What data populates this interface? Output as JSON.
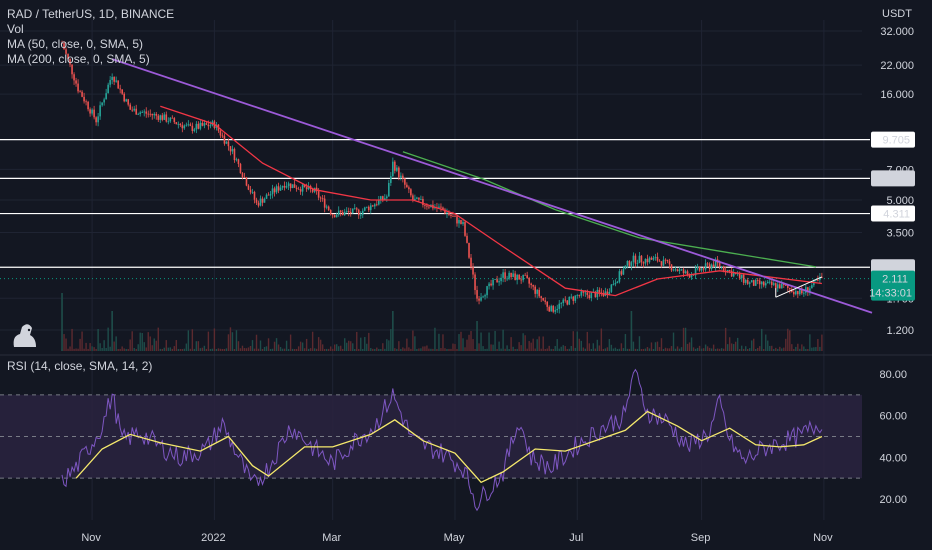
{
  "header": {
    "symbol_line": "RAD / TetherUS, 1D, BINANCE",
    "vol_label": "Vol",
    "ma50_label": "MA (50, close, 0, SMA, 5)",
    "ma200_label": "MA (200, close, 0, SMA, 5)",
    "currency": "USDT",
    "rsi_label": "RSI (14, close, SMA, 14, 2)"
  },
  "colors": {
    "background": "#131722",
    "candle_up": "#26a69a",
    "candle_down": "#ef5350",
    "ma50": "#f23645",
    "ma200": "#4caf50",
    "trendline": "#9c5ad8",
    "horizontal_levels": "#ffffff",
    "rsi_line": "#7e57c2",
    "rsi_ma": "#f5e96c",
    "rsi_band": "#2a2340",
    "current_price_tag": "#089981"
  },
  "chart_data": [
    {
      "type": "candlestick",
      "title": "RAD / TetherUS, 1D, BINANCE",
      "scale": "log",
      "yticks": [
        "32.000",
        "22.000",
        "16.000",
        "7.000",
        "5.000",
        "3.500",
        "1.700",
        "1.200"
      ],
      "ylim": [
        1.0,
        40.0
      ],
      "xticks": [
        "Nov",
        "2022",
        "Mar",
        "May",
        "Jul",
        "Sep",
        "Nov"
      ],
      "horizontal_levels": [
        {
          "value": 9.705,
          "label": "9.705"
        },
        {
          "value": 6.342,
          "label": "6.342"
        },
        {
          "value": 4.311,
          "label": "4.311"
        },
        {
          "value": 2.391,
          "label": "2.391"
        }
      ],
      "current_price": {
        "value": 2.111,
        "label": "2.111",
        "countdown": "14:33:01"
      },
      "trendline": {
        "from": {
          "date": "2021-11-11",
          "price": 23.5
        },
        "to": {
          "date": "2022-11-25",
          "price": 1.45
        }
      },
      "price_path": [
        {
          "date": "2021-10-17",
          "close": 28
        },
        {
          "date": "2021-10-25",
          "close": 17
        },
        {
          "date": "2021-11-03",
          "close": 12
        },
        {
          "date": "2021-11-11",
          "close": 20
        },
        {
          "date": "2021-11-20",
          "close": 13.5
        },
        {
          "date": "2021-12-05",
          "close": 12.5
        },
        {
          "date": "2021-12-20",
          "close": 11
        },
        {
          "date": "2022-01-01",
          "close": 11.5
        },
        {
          "date": "2022-01-10",
          "close": 8.5
        },
        {
          "date": "2022-01-22",
          "close": 4.8
        },
        {
          "date": "2022-02-05",
          "close": 6
        },
        {
          "date": "2022-02-20",
          "close": 5.5
        },
        {
          "date": "2022-03-01",
          "close": 4.3
        },
        {
          "date": "2022-03-15",
          "close": 4.4
        },
        {
          "date": "2022-03-28",
          "close": 5.2
        },
        {
          "date": "2022-03-31",
          "close": 7.5
        },
        {
          "date": "2022-04-10",
          "close": 5
        },
        {
          "date": "2022-04-25",
          "close": 4.5
        },
        {
          "date": "2022-05-05",
          "close": 3.8
        },
        {
          "date": "2022-05-12",
          "close": 1.7
        },
        {
          "date": "2022-05-25",
          "close": 2.2
        },
        {
          "date": "2022-06-05",
          "close": 2.1
        },
        {
          "date": "2022-06-18",
          "close": 1.5
        },
        {
          "date": "2022-07-01",
          "close": 1.75
        },
        {
          "date": "2022-07-15",
          "close": 1.8
        },
        {
          "date": "2022-07-28",
          "close": 2.6
        },
        {
          "date": "2022-08-10",
          "close": 2.6
        },
        {
          "date": "2022-08-25",
          "close": 2.2
        },
        {
          "date": "2022-09-08",
          "close": 2.5
        },
        {
          "date": "2022-09-25",
          "close": 2.0
        },
        {
          "date": "2022-10-10",
          "close": 1.95
        },
        {
          "date": "2022-10-21",
          "close": 1.8
        },
        {
          "date": "2022-10-31",
          "close": 2.111
        }
      ],
      "ma50": [
        {
          "date": "2021-12-05",
          "value": 14
        },
        {
          "date": "2022-01-01",
          "value": 11.5
        },
        {
          "date": "2022-01-25",
          "value": 7.5
        },
        {
          "date": "2022-02-20",
          "value": 5.6
        },
        {
          "date": "2022-03-20",
          "value": 5.0
        },
        {
          "date": "2022-04-10",
          "value": 5.0
        },
        {
          "date": "2022-05-01",
          "value": 4.3
        },
        {
          "date": "2022-05-25",
          "value": 3.0
        },
        {
          "date": "2022-06-25",
          "value": 1.9
        },
        {
          "date": "2022-07-20",
          "value": 1.75
        },
        {
          "date": "2022-08-10",
          "value": 2.1
        },
        {
          "date": "2022-09-10",
          "value": 2.3
        },
        {
          "date": "2022-10-31",
          "value": 2.0
        }
      ],
      "ma200": [
        {
          "date": "2022-04-05",
          "value": 8.5
        },
        {
          "date": "2022-05-15",
          "value": 6.3
        },
        {
          "date": "2022-06-20",
          "value": 4.5
        },
        {
          "date": "2022-08-01",
          "value": 3.3
        },
        {
          "date": "2022-09-15",
          "value": 2.8
        },
        {
          "date": "2022-10-28",
          "value": 2.4
        }
      ]
    },
    {
      "type": "line",
      "title": "RSI (14, close, SMA, 14, 2)",
      "yticks": [
        "80.00",
        "60.00",
        "40.00",
        "20.00"
      ],
      "ylim": [
        15,
        85
      ],
      "band": [
        30,
        70
      ],
      "midline": 50,
      "series": [
        {
          "name": "RSI",
          "points": [
            {
              "date": "2021-10-17",
              "value": 28
            },
            {
              "date": "2021-10-24",
              "value": 35
            },
            {
              "date": "2021-11-01",
              "value": 47
            },
            {
              "date": "2021-11-06",
              "value": 55
            },
            {
              "date": "2021-11-11",
              "value": 70
            },
            {
              "date": "2021-11-16",
              "value": 48
            },
            {
              "date": "2021-11-25",
              "value": 52
            },
            {
              "date": "2021-12-05",
              "value": 45
            },
            {
              "date": "2021-12-15",
              "value": 40
            },
            {
              "date": "2021-12-28",
              "value": 44
            },
            {
              "date": "2022-01-05",
              "value": 56
            },
            {
              "date": "2022-01-12",
              "value": 42
            },
            {
              "date": "2022-01-20",
              "value": 26
            },
            {
              "date": "2022-01-28",
              "value": 35
            },
            {
              "date": "2022-02-08",
              "value": 55
            },
            {
              "date": "2022-02-20",
              "value": 44
            },
            {
              "date": "2022-03-01",
              "value": 37
            },
            {
              "date": "2022-03-12",
              "value": 48
            },
            {
              "date": "2022-03-22",
              "value": 55
            },
            {
              "date": "2022-03-31",
              "value": 70
            },
            {
              "date": "2022-04-10",
              "value": 48
            },
            {
              "date": "2022-04-25",
              "value": 42
            },
            {
              "date": "2022-05-05",
              "value": 35
            },
            {
              "date": "2022-05-12",
              "value": 18
            },
            {
              "date": "2022-05-25",
              "value": 33
            },
            {
              "date": "2022-06-02",
              "value": 58
            },
            {
              "date": "2022-06-08",
              "value": 40
            },
            {
              "date": "2022-06-18",
              "value": 35
            },
            {
              "date": "2022-07-01",
              "value": 46
            },
            {
              "date": "2022-07-15",
              "value": 55
            },
            {
              "date": "2022-07-25",
              "value": 60
            },
            {
              "date": "2022-07-29",
              "value": 82
            },
            {
              "date": "2022-08-05",
              "value": 62
            },
            {
              "date": "2022-08-15",
              "value": 57
            },
            {
              "date": "2022-08-25",
              "value": 45
            },
            {
              "date": "2022-09-05",
              "value": 52
            },
            {
              "date": "2022-09-10",
              "value": 66
            },
            {
              "date": "2022-09-15",
              "value": 48
            },
            {
              "date": "2022-09-22",
              "value": 38
            },
            {
              "date": "2022-10-01",
              "value": 44
            },
            {
              "date": "2022-10-10",
              "value": 47
            },
            {
              "date": "2022-10-20",
              "value": 50
            },
            {
              "date": "2022-10-31",
              "value": 57
            }
          ]
        },
        {
          "name": "RSI-based MA",
          "points": [
            {
              "date": "2021-10-24",
              "value": 30
            },
            {
              "date": "2021-11-06",
              "value": 44
            },
            {
              "date": "2021-11-20",
              "value": 51
            },
            {
              "date": "2021-12-05",
              "value": 47
            },
            {
              "date": "2021-12-25",
              "value": 43
            },
            {
              "date": "2022-01-08",
              "value": 50
            },
            {
              "date": "2022-01-20",
              "value": 36
            },
            {
              "date": "2022-01-28",
              "value": 31
            },
            {
              "date": "2022-02-15",
              "value": 45
            },
            {
              "date": "2022-03-01",
              "value": 45
            },
            {
              "date": "2022-03-20",
              "value": 51
            },
            {
              "date": "2022-04-01",
              "value": 58
            },
            {
              "date": "2022-04-15",
              "value": 48
            },
            {
              "date": "2022-05-01",
              "value": 42
            },
            {
              "date": "2022-05-14",
              "value": 28
            },
            {
              "date": "2022-05-25",
              "value": 33
            },
            {
              "date": "2022-06-10",
              "value": 44
            },
            {
              "date": "2022-06-25",
              "value": 43
            },
            {
              "date": "2022-07-10",
              "value": 48
            },
            {
              "date": "2022-07-25",
              "value": 53
            },
            {
              "date": "2022-08-05",
              "value": 62
            },
            {
              "date": "2022-08-20",
              "value": 55
            },
            {
              "date": "2022-09-01",
              "value": 48
            },
            {
              "date": "2022-09-15",
              "value": 54
            },
            {
              "date": "2022-09-28",
              "value": 46
            },
            {
              "date": "2022-10-10",
              "value": 45
            },
            {
              "date": "2022-10-22",
              "value": 46
            },
            {
              "date": "2022-10-31",
              "value": 50
            }
          ]
        }
      ]
    }
  ]
}
